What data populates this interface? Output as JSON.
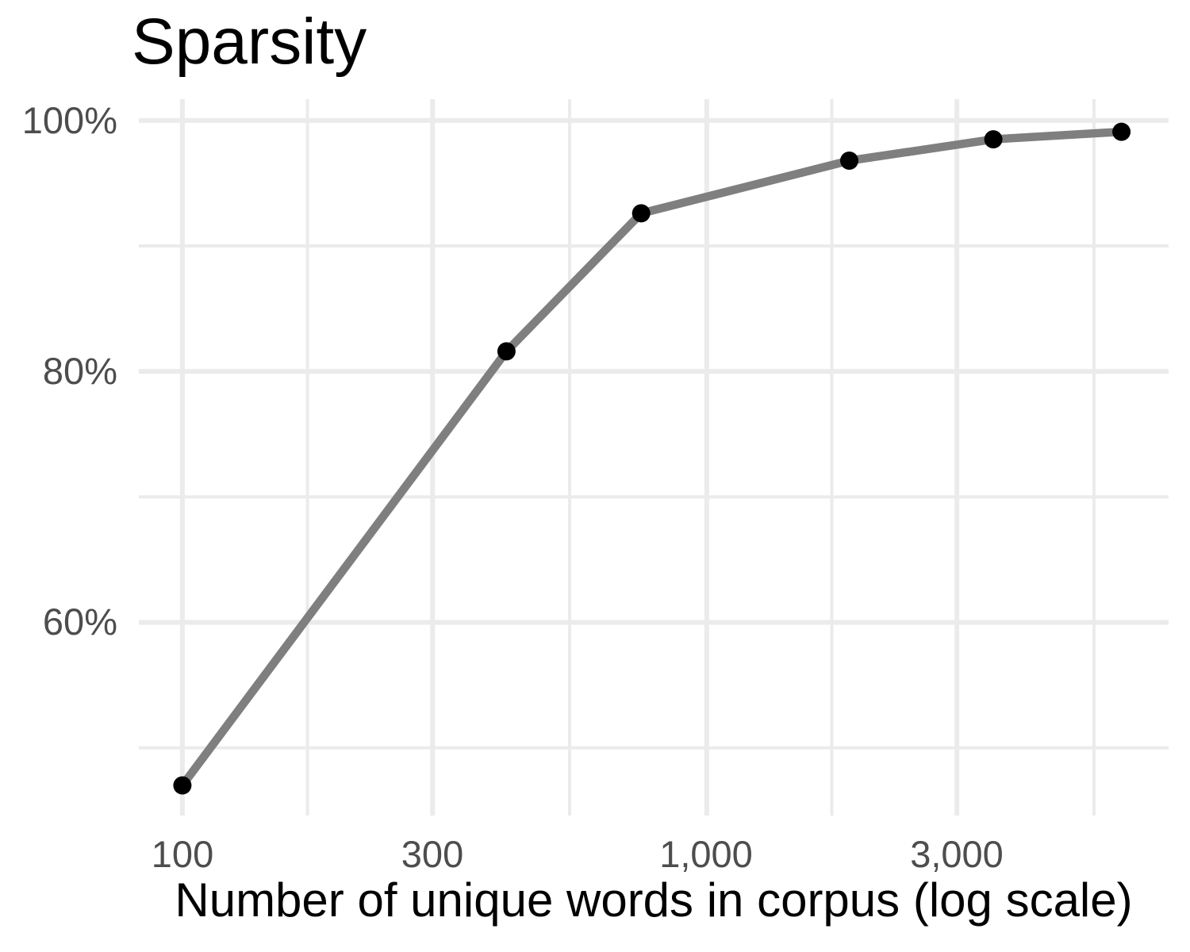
{
  "title": "Sparsity",
  "x_axis": {
    "label": "Number of unique words in corpus (log scale)",
    "scale": "log10",
    "tick_labels": [
      "100",
      "300",
      "1,000",
      "3,000"
    ],
    "tick_values": [
      100,
      300,
      1000,
      3000
    ],
    "minor_values": [
      173.2,
      547.7,
      1732.1,
      5477.2
    ],
    "domain": [
      82.6,
      7600
    ]
  },
  "y_axis": {
    "tick_labels": [
      "100%",
      "80%",
      "60%"
    ],
    "tick_values": [
      100,
      80,
      60
    ],
    "minor_values": [
      90,
      70,
      50
    ],
    "domain": [
      44.6,
      101.7
    ]
  },
  "chart_data": {
    "type": "line",
    "title": "Sparsity",
    "xlabel": "Number of unique words in corpus (log scale)",
    "ylabel": "",
    "x_scale": "log10",
    "x": [
      100,
      415,
      750,
      1870,
      3520,
      6180
    ],
    "y_percent": [
      47.0,
      81.6,
      92.6,
      96.8,
      98.5,
      99.1
    ],
    "xlim": [
      82.6,
      7600
    ],
    "ylim": [
      44.6,
      101.7
    ],
    "grid": true,
    "legend": false
  },
  "style": {
    "background": "#ffffff",
    "grid_color": "#ebebeb",
    "line_color": "#7f7f7f",
    "point_color": "#000000",
    "tick_label_color": "#4d4d4d",
    "title_color": "#000000"
  }
}
